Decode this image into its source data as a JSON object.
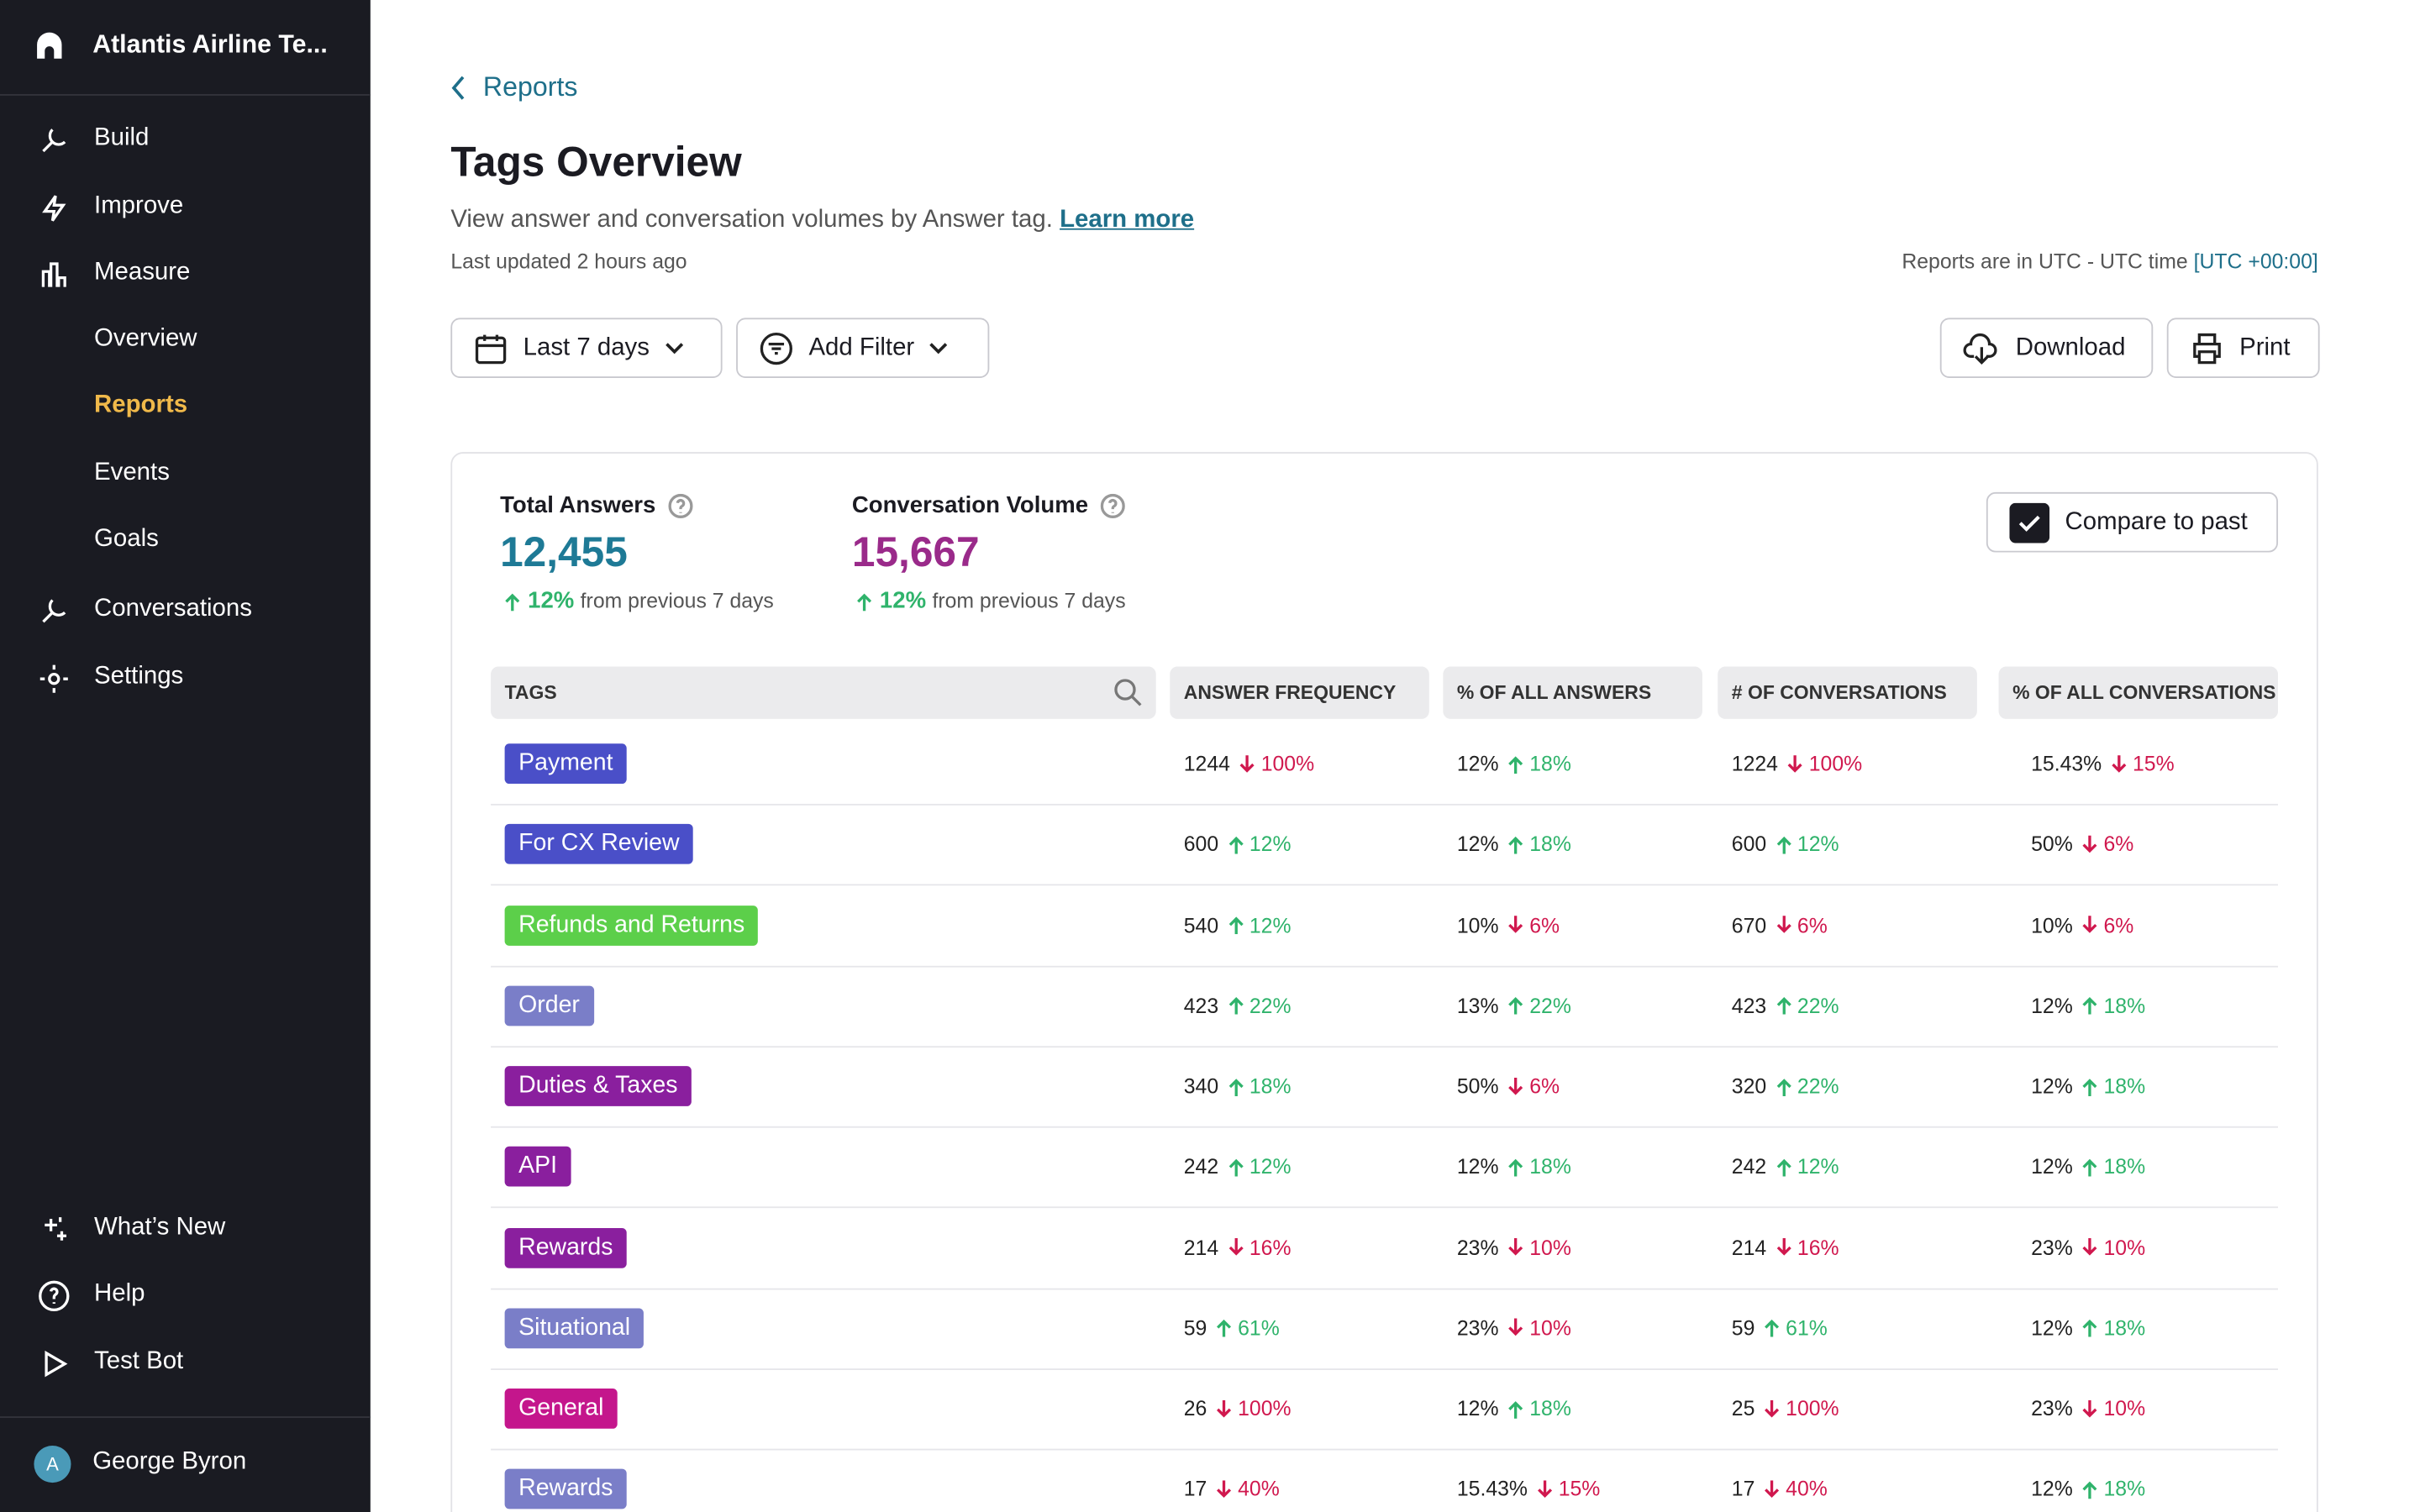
{
  "sidebar": {
    "workspace": "Atlantis Airline Te...",
    "nav": [
      {
        "label": "Build",
        "level": 0
      },
      {
        "label": "Improve",
        "level": 0
      },
      {
        "label": "Measure",
        "level": 0
      },
      {
        "label": "Overview",
        "level": 1
      },
      {
        "label": "Reports",
        "level": 1,
        "active": true
      },
      {
        "label": "Events",
        "level": 1
      },
      {
        "label": "Goals",
        "level": 1
      },
      {
        "label": "Conversations",
        "level": 0
      },
      {
        "label": "Settings",
        "level": 0
      }
    ],
    "bottom": [
      "What’s New",
      "Help",
      "Test Bot"
    ],
    "user": {
      "initial": "A",
      "name": "George Byron"
    }
  },
  "header": {
    "breadcrumb": "Reports",
    "title": "Tags Overview",
    "description": "View answer and conversation volumes by Answer tag.",
    "learn_more": "Learn more",
    "last_updated": "Last updated 2 hours ago",
    "timezone_note": "Reports are in UTC - UTC time",
    "timezone_link": "[UTC +00:00]"
  },
  "toolbar": {
    "date_range": "Last 7 days",
    "filter": "Add Filter",
    "download": "Download",
    "print": "Print"
  },
  "stats": [
    {
      "label": "Total Answers",
      "value": "12,455",
      "change": "12%",
      "note": "from previous 7 days",
      "color": "#1e7a96"
    },
    {
      "label": "Conversation Volume",
      "value": "15,667",
      "change": "12%",
      "note": "from previous 7 days",
      "color": "#9a2a8a"
    }
  ],
  "compare": "Compare to past",
  "table": {
    "headers": [
      "TAGS",
      "ANSWER FREQUENCY",
      "% OF ALL ANSWERS",
      "# OF CONVERSATIONS",
      "% OF ALL CONVERSATIONS"
    ],
    "rows": [
      {
        "tag": "Payment",
        "color": "#4a4fc8",
        "cells": [
          [
            "1244",
            "100%",
            "down"
          ],
          [
            "12%",
            "18%",
            "up"
          ],
          [
            "1224",
            "100%",
            "down"
          ],
          [
            "15.43%",
            "15%",
            "down"
          ]
        ]
      },
      {
        "tag": "For CX Review",
        "color": "#4a4fc8",
        "cells": [
          [
            "600",
            "12%",
            "up"
          ],
          [
            "12%",
            "18%",
            "up"
          ],
          [
            "600",
            "12%",
            "up"
          ],
          [
            "50%",
            "6%",
            "down"
          ]
        ]
      },
      {
        "tag": "Refunds and Returns",
        "color": "#5ccf4a",
        "cells": [
          [
            "540",
            "12%",
            "up"
          ],
          [
            "10%",
            "6%",
            "down"
          ],
          [
            "670",
            "6%",
            "down"
          ],
          [
            "10%",
            "6%",
            "down"
          ]
        ]
      },
      {
        "tag": "Order",
        "color": "#7a7ec8",
        "cells": [
          [
            "423",
            "22%",
            "up"
          ],
          [
            "13%",
            "22%",
            "up"
          ],
          [
            "423",
            "22%",
            "up"
          ],
          [
            "12%",
            "18%",
            "up"
          ]
        ]
      },
      {
        "tag": "Duties & Taxes",
        "color": "#8a1f9e",
        "cells": [
          [
            "340",
            "18%",
            "up"
          ],
          [
            "50%",
            "6%",
            "down"
          ],
          [
            "320",
            "22%",
            "up"
          ],
          [
            "12%",
            "18%",
            "up"
          ]
        ]
      },
      {
        "tag": "API",
        "color": "#8a1f9e",
        "cells": [
          [
            "242",
            "12%",
            "up"
          ],
          [
            "12%",
            "18%",
            "up"
          ],
          [
            "242",
            "12%",
            "up"
          ],
          [
            "12%",
            "18%",
            "up"
          ]
        ]
      },
      {
        "tag": "Rewards",
        "color": "#8a1f9e",
        "cells": [
          [
            "214",
            "16%",
            "down"
          ],
          [
            "23%",
            "10%",
            "down"
          ],
          [
            "214",
            "16%",
            "down"
          ],
          [
            "23%",
            "10%",
            "down"
          ]
        ]
      },
      {
        "tag": "Situational",
        "color": "#7a7ec8",
        "cells": [
          [
            "59",
            "61%",
            "up"
          ],
          [
            "23%",
            "10%",
            "down"
          ],
          [
            "59",
            "61%",
            "up"
          ],
          [
            "12%",
            "18%",
            "up"
          ]
        ]
      },
      {
        "tag": "General",
        "color": "#c4168c",
        "cells": [
          [
            "26",
            "100%",
            "down"
          ],
          [
            "12%",
            "18%",
            "up"
          ],
          [
            "25",
            "100%",
            "down"
          ],
          [
            "23%",
            "10%",
            "down"
          ]
        ]
      },
      {
        "tag": "Rewards",
        "color": "#7a7ec8",
        "cells": [
          [
            "17",
            "40%",
            "down"
          ],
          [
            "15.43%",
            "15%",
            "down"
          ],
          [
            "17",
            "40%",
            "down"
          ],
          [
            "12%",
            "18%",
            "up"
          ]
        ]
      }
    ]
  }
}
